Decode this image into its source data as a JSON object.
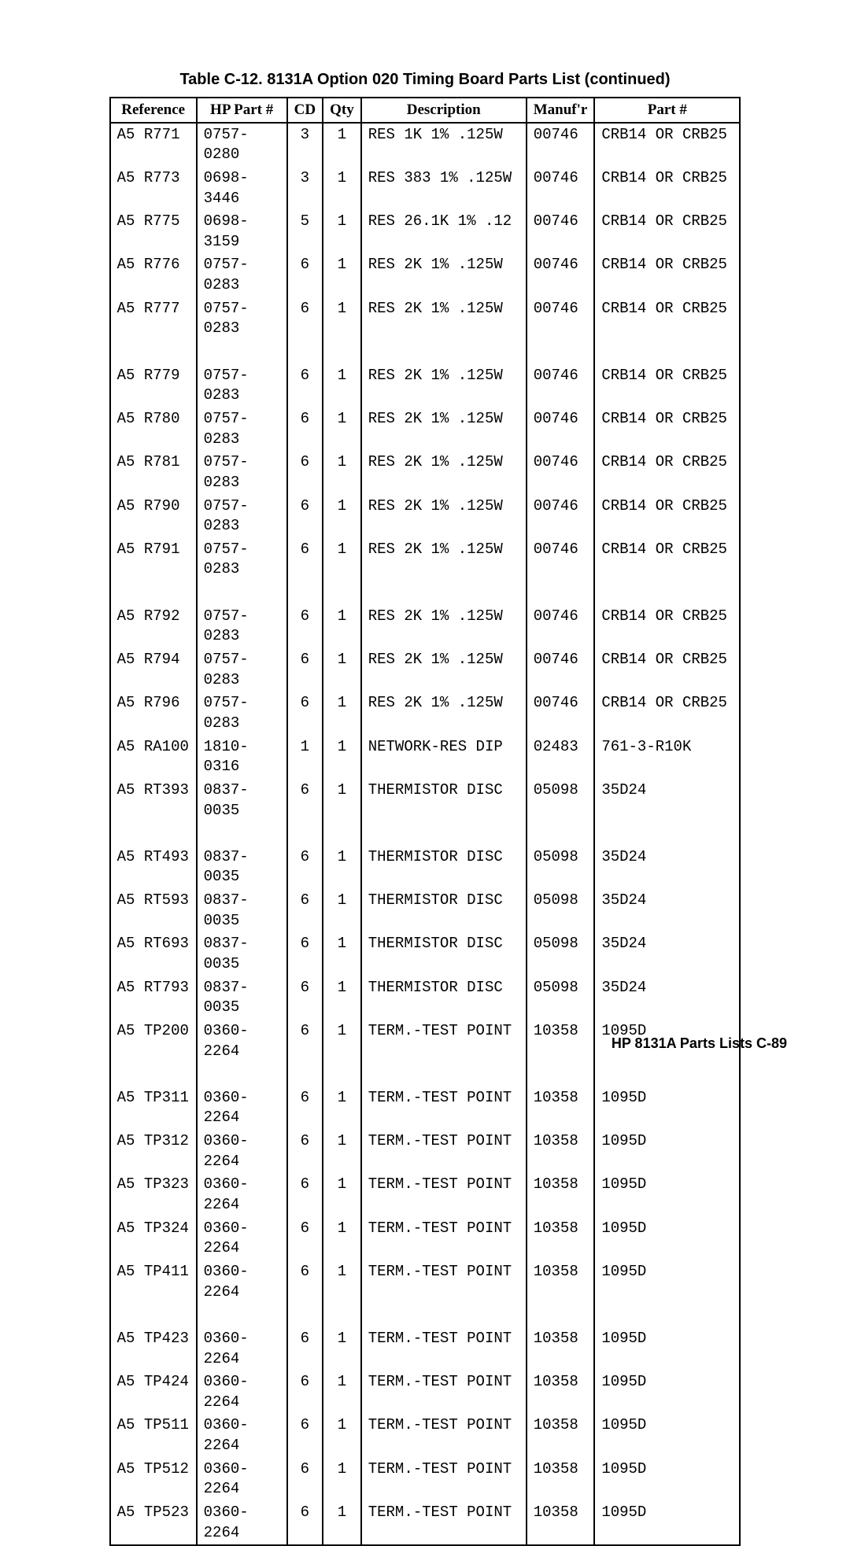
{
  "title": "Table C-12. 8131A Option 020 Timing Board Parts List (continued)",
  "columns": [
    "Reference",
    "HP Part #",
    "CD",
    "Qty",
    "Description",
    "Manuf'r",
    "Part #"
  ],
  "groups": [
    [
      [
        "A5 R771",
        "0757-0280",
        "3",
        "1",
        "RES 1K 1% .125W",
        "00746",
        "CRB14 OR CRB25"
      ],
      [
        "A5 R773",
        "0698-3446",
        "3",
        "1",
        "RES 383 1% .125W",
        "00746",
        "CRB14 OR CRB25"
      ],
      [
        "A5 R775",
        "0698-3159",
        "5",
        "1",
        "RES 26.1K 1% .12",
        "00746",
        "CRB14 OR CRB25"
      ],
      [
        "A5 R776",
        "0757-0283",
        "6",
        "1",
        "RES 2K 1% .125W",
        "00746",
        "CRB14 OR CRB25"
      ],
      [
        "A5 R777",
        "0757-0283",
        "6",
        "1",
        "RES 2K 1% .125W",
        "00746",
        "CRB14 OR CRB25"
      ]
    ],
    [
      [
        "A5 R779",
        "0757-0283",
        "6",
        "1",
        "RES 2K 1% .125W",
        "00746",
        "CRB14 OR CRB25"
      ],
      [
        "A5 R780",
        "0757-0283",
        "6",
        "1",
        "RES 2K 1% .125W",
        "00746",
        "CRB14 OR CRB25"
      ],
      [
        "A5 R781",
        "0757-0283",
        "6",
        "1",
        "RES 2K 1% .125W",
        "00746",
        "CRB14 OR CRB25"
      ],
      [
        "A5 R790",
        "0757-0283",
        "6",
        "1",
        "RES 2K 1% .125W",
        "00746",
        "CRB14 OR CRB25"
      ],
      [
        "A5 R791",
        "0757-0283",
        "6",
        "1",
        "RES 2K 1% .125W",
        "00746",
        "CRB14 OR CRB25"
      ]
    ],
    [
      [
        "A5 R792",
        "0757-0283",
        "6",
        "1",
        "RES 2K 1% .125W",
        "00746",
        "CRB14 OR CRB25"
      ],
      [
        "A5 R794",
        "0757-0283",
        "6",
        "1",
        "RES 2K 1% .125W",
        "00746",
        "CRB14 OR CRB25"
      ],
      [
        "A5 R796",
        "0757-0283",
        "6",
        "1",
        "RES 2K 1% .125W",
        "00746",
        "CRB14 OR CRB25"
      ],
      [
        "A5 RA100",
        "1810-0316",
        "1",
        "1",
        "NETWORK-RES DIP",
        "02483",
        "761-3-R10K"
      ],
      [
        "A5 RT393",
        "0837-0035",
        "6",
        "1",
        "THERMISTOR DISC",
        "05098",
        "35D24"
      ]
    ],
    [
      [
        "A5 RT493",
        "0837-0035",
        "6",
        "1",
        "THERMISTOR DISC",
        "05098",
        "35D24"
      ],
      [
        "A5 RT593",
        "0837-0035",
        "6",
        "1",
        "THERMISTOR DISC",
        "05098",
        "35D24"
      ],
      [
        "A5 RT693",
        "0837-0035",
        "6",
        "1",
        "THERMISTOR DISC",
        "05098",
        "35D24"
      ],
      [
        "A5 RT793",
        "0837-0035",
        "6",
        "1",
        "THERMISTOR DISC",
        "05098",
        "35D24"
      ],
      [
        "A5 TP200",
        "0360-2264",
        "6",
        "1",
        "TERM.-TEST POINT",
        "10358",
        "1095D"
      ]
    ],
    [
      [
        "A5 TP311",
        "0360-2264",
        "6",
        "1",
        "TERM.-TEST POINT",
        "10358",
        "1095D"
      ],
      [
        "A5 TP312",
        "0360-2264",
        "6",
        "1",
        "TERM.-TEST POINT",
        "10358",
        "1095D"
      ],
      [
        "A5 TP323",
        "0360-2264",
        "6",
        "1",
        "TERM.-TEST POINT",
        "10358",
        "1095D"
      ],
      [
        "A5 TP324",
        "0360-2264",
        "6",
        "1",
        "TERM.-TEST POINT",
        "10358",
        "1095D"
      ],
      [
        "A5 TP411",
        "0360-2264",
        "6",
        "1",
        "TERM.-TEST POINT",
        "10358",
        "1095D"
      ]
    ],
    [
      [
        "A5 TP423",
        "0360-2264",
        "6",
        "1",
        "TERM.-TEST POINT",
        "10358",
        "1095D"
      ],
      [
        "A5 TP424",
        "0360-2264",
        "6",
        "1",
        "TERM.-TEST POINT",
        "10358",
        "1095D"
      ],
      [
        "A5 TP511",
        "0360-2264",
        "6",
        "1",
        "TERM.-TEST POINT",
        "10358",
        "1095D"
      ],
      [
        "A5 TP512",
        "0360-2264",
        "6",
        "1",
        "TERM.-TEST POINT",
        "10358",
        "1095D"
      ],
      [
        "A5 TP523",
        "0360-2264",
        "6",
        "1",
        "TERM.-TEST POINT",
        "10358",
        "1095D"
      ]
    ]
  ],
  "footer": "HP 8131A Parts Lists   C-89"
}
